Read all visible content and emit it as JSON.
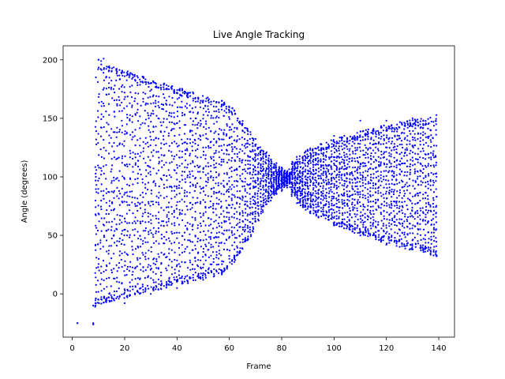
{
  "chart_data": {
    "type": "scatter",
    "title": "Live Angle Tracking",
    "xlabel": "Frame",
    "ylabel": "Angle (degrees)",
    "xlim": [
      -3.5,
      146
    ],
    "ylim": [
      -37,
      212
    ],
    "xticks": [
      0,
      20,
      40,
      60,
      80,
      100,
      120,
      140
    ],
    "yticks": [
      0,
      50,
      100,
      150,
      200
    ],
    "grid": false,
    "legend": "none",
    "series": [
      {
        "color": "#0000ff",
        "marker": "dot",
        "description": "Dense point cloud per frame (frames 2–139). Spread narrows from about -10..200 at frame 10 to about 90..105 at frame 83, then widens to about 35..150 by frame 139.",
        "points_sample": [
          [
            2,
            -25
          ],
          [
            8,
            -26
          ],
          [
            8,
            -10
          ],
          [
            9,
            -8
          ],
          [
            9,
            100
          ],
          [
            9,
            185
          ],
          [
            10,
            -5
          ],
          [
            10,
            200
          ],
          [
            11,
            199
          ],
          [
            12,
            201
          ],
          [
            15,
            190
          ],
          [
            20,
            186
          ],
          [
            20,
            -8
          ],
          [
            30,
            180
          ],
          [
            30,
            0
          ],
          [
            40,
            172
          ],
          [
            40,
            5
          ],
          [
            50,
            165
          ],
          [
            50,
            12
          ],
          [
            55,
            160
          ],
          [
            55,
            20
          ],
          [
            60,
            140
          ],
          [
            60,
            30
          ],
          [
            70,
            118
          ],
          [
            70,
            62
          ],
          [
            80,
            108
          ],
          [
            80,
            88
          ],
          [
            83,
            103
          ],
          [
            83,
            95
          ],
          [
            90,
            122
          ],
          [
            90,
            85
          ],
          [
            100,
            135
          ],
          [
            100,
            60
          ],
          [
            110,
            148
          ],
          [
            110,
            50
          ],
          [
            120,
            148
          ],
          [
            120,
            42
          ],
          [
            130,
            150
          ],
          [
            130,
            38
          ],
          [
            139,
            145
          ],
          [
            139,
            33
          ]
        ]
      }
    ]
  }
}
